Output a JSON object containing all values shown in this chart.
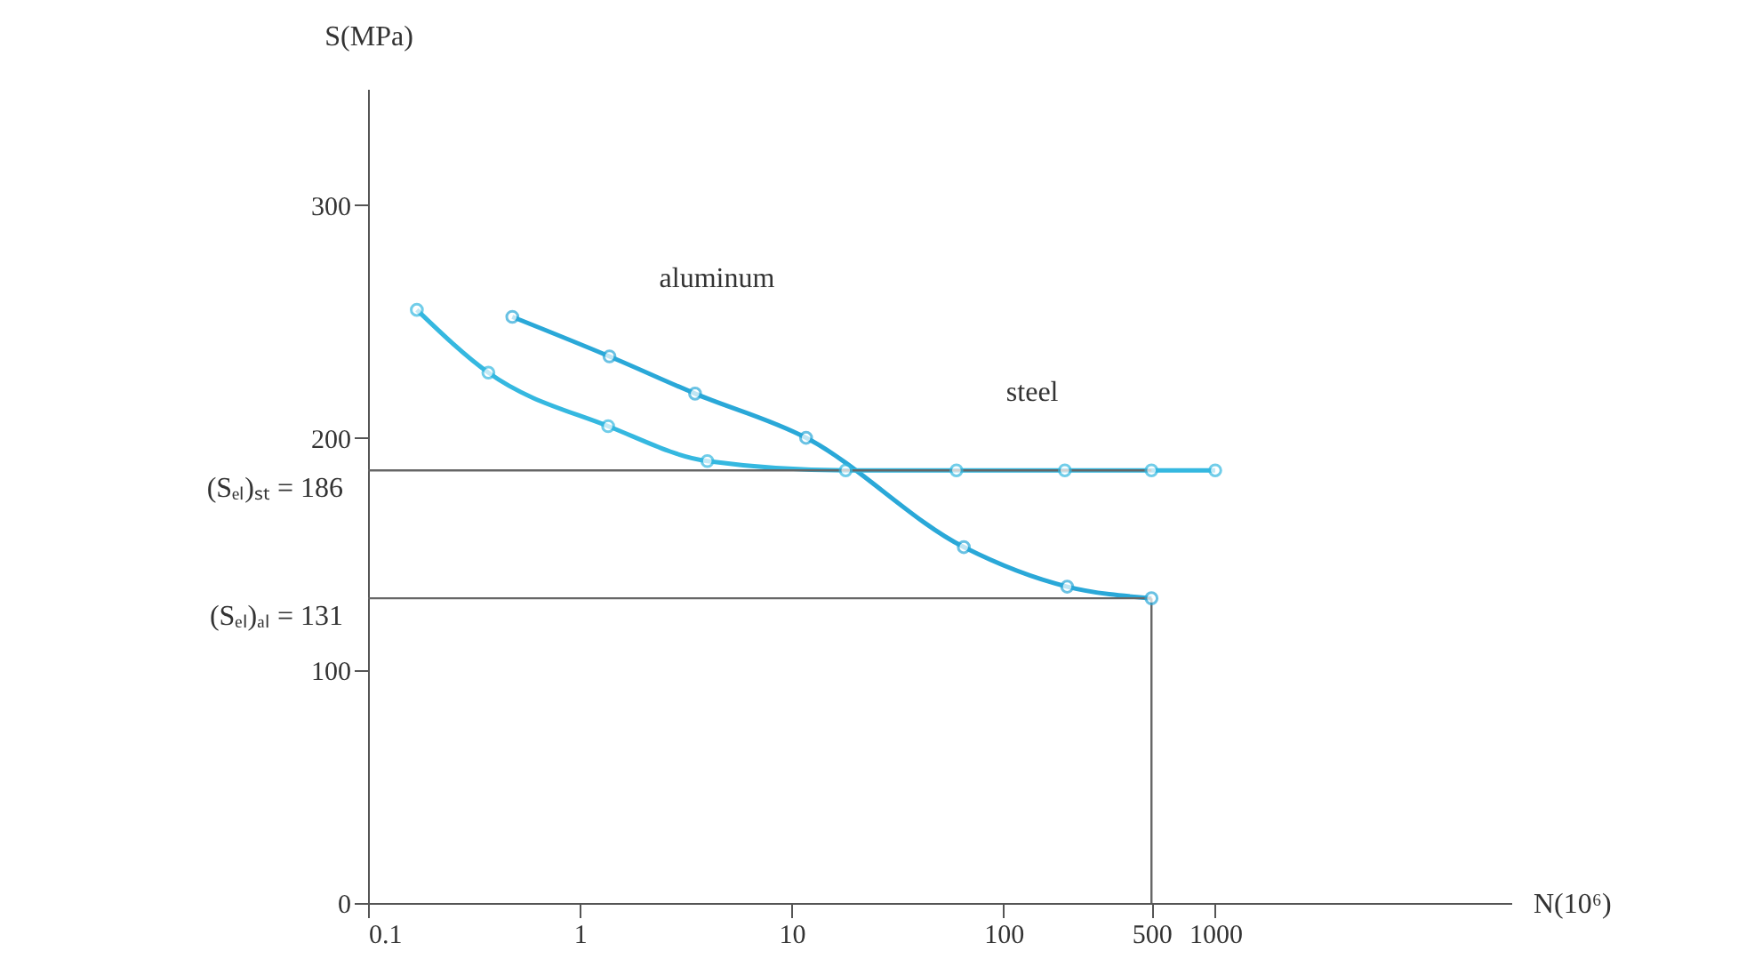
{
  "chart_data": {
    "type": "line",
    "xlabel": "N(10⁶)",
    "ylabel": "S(MPa)",
    "log": "x",
    "xlim": [
      0.1,
      25000
    ],
    "ylim": [
      0,
      350
    ],
    "xticks": [
      0.1,
      1,
      10,
      100,
      500,
      1000
    ],
    "yticks": [
      0,
      100,
      200,
      300
    ],
    "marker": "circle",
    "line_style": "solid",
    "series": [
      {
        "name": "aluminum",
        "color": "#2aa8d8",
        "x": [
          0.48,
          1.38,
          3.5,
          11.7,
          65,
          200,
          500
        ],
        "values": [
          252,
          235,
          219,
          200,
          153,
          136,
          131
        ]
      },
      {
        "name": "steel",
        "color": "#35b8e0",
        "x": [
          0.17,
          0.37,
          1.36,
          4,
          18,
          60,
          195,
          500,
          1000
        ],
        "values": [
          255,
          228,
          205,
          190,
          186,
          186,
          186,
          186,
          186
        ]
      }
    ],
    "ref_lines": [
      {
        "axis": "y",
        "value": 186,
        "label": "(Sₑₗ)ₛₜ = 186"
      },
      {
        "axis": "y",
        "value": 131,
        "label": "(Sₑₗ)ₐₗ = 131"
      },
      {
        "axis": "x",
        "value": 500
      }
    ]
  }
}
